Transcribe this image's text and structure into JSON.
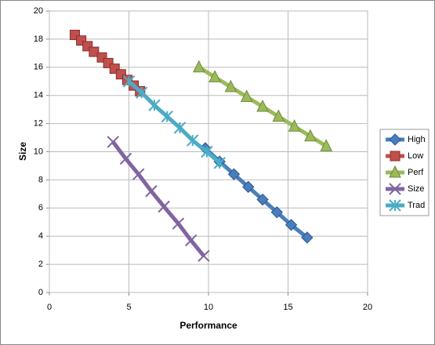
{
  "chart_data": {
    "type": "scatter",
    "x_label": "Performance",
    "y_label": "Size",
    "xlim": [
      0,
      20
    ],
    "xticks": [
      0,
      5,
      10,
      15,
      20
    ],
    "ylim": [
      0,
      20
    ],
    "yticks": [
      0,
      2,
      4,
      6,
      8,
      10,
      12,
      14,
      16,
      18,
      20
    ],
    "grid": true,
    "legend": "right",
    "series": [
      {
        "name": "High",
        "color": "#4a7ebb",
        "marker": "diamond",
        "x": [
          9.8,
          10.7,
          11.6,
          12.5,
          13.4,
          14.3,
          15.2,
          16.2
        ],
        "values": [
          10.25,
          9.3,
          8.4,
          7.5,
          6.6,
          5.7,
          4.8,
          3.9
        ]
      },
      {
        "name": "Low",
        "color": "#c0504d",
        "marker": "square",
        "x": [
          1.6,
          2.0,
          2.4,
          2.8,
          3.3,
          3.7,
          4.1,
          4.5,
          4.9,
          5.3,
          5.7
        ],
        "values": [
          18.3,
          17.9,
          17.5,
          17.1,
          16.7,
          16.3,
          15.9,
          15.5,
          15.1,
          14.7,
          14.3
        ]
      },
      {
        "name": "Perf",
        "color": "#9bbb59",
        "marker": "triangle",
        "x": [
          9.4,
          10.4,
          11.4,
          12.4,
          13.4,
          14.4,
          15.4,
          16.4,
          17.4
        ],
        "values": [
          16.0,
          15.3,
          14.6,
          13.9,
          13.2,
          12.5,
          11.8,
          11.1,
          10.4
        ]
      },
      {
        "name": "Size",
        "color": "#8064a2",
        "marker": "x",
        "x": [
          4.0,
          4.8,
          5.6,
          6.4,
          7.2,
          8.1,
          8.9,
          9.7
        ],
        "values": [
          10.7,
          9.5,
          8.4,
          7.2,
          6.1,
          4.9,
          3.7,
          2.6
        ]
      },
      {
        "name": "Trad",
        "color": "#4bacc6",
        "marker": "star",
        "x": [
          5.0,
          5.8,
          6.6,
          7.4,
          8.2,
          9.0,
          9.9,
          10.7
        ],
        "values": [
          15.0,
          14.2,
          13.3,
          12.5,
          11.7,
          10.8,
          10.0,
          9.2
        ]
      }
    ]
  }
}
